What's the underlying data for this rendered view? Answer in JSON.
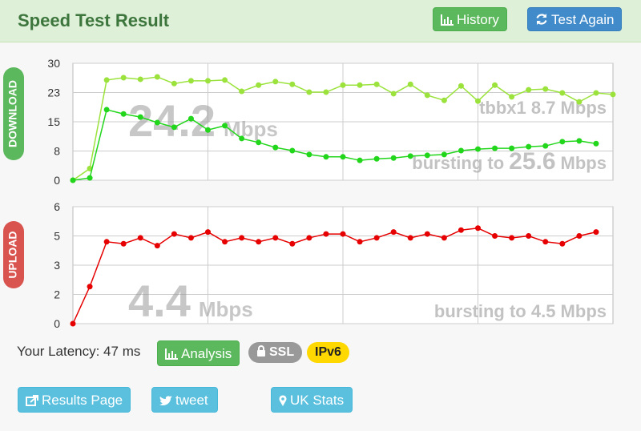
{
  "header": {
    "title": "Speed Test Result",
    "history": "History",
    "test_again": "Test Again"
  },
  "chart_data": [
    {
      "type": "line",
      "label": "DOWNLOAD",
      "speed": "24.2",
      "speed_unit": "Mbps",
      "note": "tbbx1 8.7 Mbps",
      "burst": [
        "bursting to",
        "25.6",
        "Mbps"
      ],
      "ylim": [
        0,
        30
      ],
      "yticks": [
        0,
        {
          "value": 7.5,
          "label": "8"
        },
        15,
        {
          "value": 22.5,
          "label": "23"
        },
        30
      ],
      "grid": true,
      "series": [
        {
          "name": "tbbx1",
          "color": "#9be33c",
          "values": [
            0,
            3,
            25.7,
            26.3,
            25.9,
            26.5,
            24.8,
            25.5,
            25.5,
            25.7,
            22.8,
            24.4,
            25.3,
            24.6,
            22.6,
            22.6,
            24.4,
            24.4,
            24.6,
            22.2,
            24.6,
            21.8,
            20.5,
            24.2,
            20.3,
            24.4,
            21.4,
            23.2,
            23.4,
            22.4,
            20.1,
            22.4,
            22.0
          ]
        },
        {
          "name": "download",
          "color": "#22d61c",
          "values": [
            0,
            0.6,
            18.1,
            17,
            16.2,
            14.8,
            13.6,
            15.8,
            12.9,
            14,
            10.7,
            9.7,
            8.4,
            7.6,
            6.6,
            6,
            6,
            5.1,
            5.5,
            5.7,
            6.2,
            6.4,
            6.6,
            7.6,
            8,
            8.2,
            8.2,
            8.6,
            8.8,
            9.9,
            10.1,
            9.4
          ]
        }
      ]
    },
    {
      "type": "line",
      "label": "UPLOAD",
      "speed": "4.4",
      "speed_unit": "Mbps",
      "burst": [
        "bursting to 4.5 Mbps"
      ],
      "ylim": [
        0,
        6
      ],
      "yticks": [
        0,
        {
          "value": 1.5,
          "label": "2"
        },
        3,
        {
          "value": 4.5,
          "label": "5"
        },
        6
      ],
      "grid": true,
      "series": [
        {
          "name": "upload",
          "color": "#e60000",
          "values": [
            0,
            1.9,
            4.2,
            4.1,
            4.4,
            4.0,
            4.6,
            4.4,
            4.7,
            4.2,
            4.4,
            4.2,
            4.4,
            4.1,
            4.4,
            4.6,
            4.6,
            4.2,
            4.4,
            4.7,
            4.4,
            4.6,
            4.4,
            4.8,
            4.9,
            4.5,
            4.4,
            4.5,
            4.2,
            4.1,
            4.5,
            4.7
          ]
        }
      ]
    }
  ],
  "footer": {
    "latency": "Your Latency: 47 ms",
    "analysis": "Analysis",
    "ssl": "SSL",
    "ipv6": "IPv6",
    "results_page": "Results Page",
    "tweet": "tweet",
    "uk_stats": "UK Stats"
  }
}
